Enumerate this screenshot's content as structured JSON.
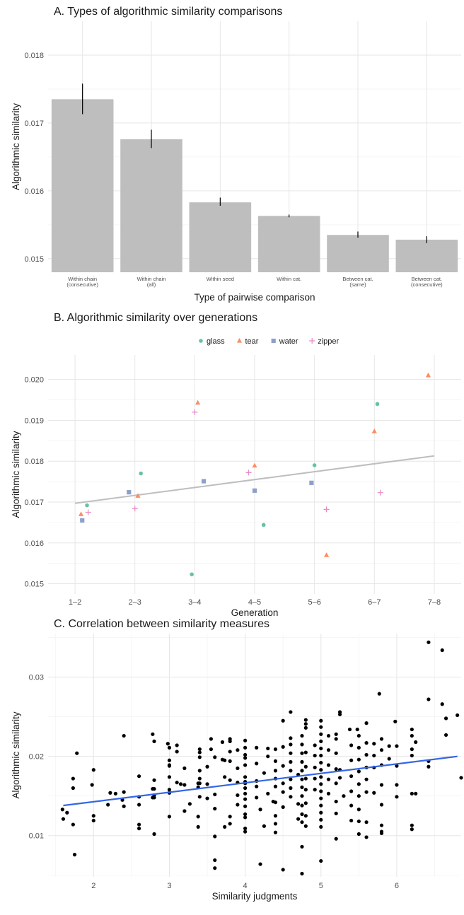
{
  "chart_data": [
    {
      "type": "bar",
      "title": "A. Types of algorithmic similarity comparisons",
      "xlabel": "Type of pairwise comparison",
      "ylabel": "Algorithmic similarity",
      "ylim": [
        0.0148,
        0.0185
      ],
      "yticks": [
        "0.015",
        "0.016",
        "0.017",
        "0.018"
      ],
      "categories": [
        [
          "Within chain",
          "(consecutive)"
        ],
        [
          "Within chain",
          "(all)"
        ],
        [
          "Within seed"
        ],
        [
          "Within cat."
        ],
        [
          "Between cat.",
          "(same)"
        ],
        [
          "Between cat.",
          "(consecutive)"
        ]
      ],
      "values": [
        0.01735,
        0.01676,
        0.01583,
        0.01563,
        0.01535,
        0.01528
      ],
      "error_low": [
        0.01713,
        0.01663,
        0.01578,
        0.01561,
        0.01531,
        0.01523
      ],
      "error_high": [
        0.01758,
        0.0169,
        0.0159,
        0.01565,
        0.0154,
        0.01533
      ],
      "colors": {
        "bar": "#bebebe",
        "error": "#000000"
      }
    },
    {
      "type": "scatter",
      "title": "B. Algorithmic similarity over generations",
      "xlabel": "Generation",
      "ylabel": "Algorithmic similarity",
      "categories": [
        "1–2",
        "2–3",
        "3–4",
        "4–5",
        "5–6",
        "6–7",
        "7–8"
      ],
      "ylim": [
        0.01475,
        0.0206
      ],
      "yticks": [
        "0.015",
        "0.016",
        "0.017",
        "0.018",
        "0.019",
        "0.020"
      ],
      "legend_position": "top",
      "series": [
        {
          "name": "glass",
          "shape": "circle",
          "color": "#66c2a5",
          "points": [
            [
              1.2,
              0.01692
            ],
            [
              2.1,
              0.0177
            ],
            [
              2.95,
              0.01523
            ],
            [
              4.15,
              0.01644
            ],
            [
              5.0,
              0.0179
            ],
            [
              6.05,
              0.0194
            ]
          ]
        },
        {
          "name": "tear",
          "shape": "triangle",
          "color": "#fc8d62",
          "points": [
            [
              1.1,
              0.0167
            ],
            [
              2.05,
              0.01715
            ],
            [
              3.05,
              0.01943
            ],
            [
              4.0,
              0.01789
            ],
            [
              5.2,
              0.0157
            ],
            [
              6.0,
              0.01873
            ],
            [
              6.9,
              0.0201
            ]
          ]
        },
        {
          "name": "water",
          "shape": "square",
          "color": "#8da0cb",
          "points": [
            [
              1.12,
              0.01655
            ],
            [
              1.9,
              0.01724
            ],
            [
              3.15,
              0.01751
            ],
            [
              4.0,
              0.01728
            ],
            [
              4.95,
              0.01747
            ]
          ]
        },
        {
          "name": "zipper",
          "shape": "plus",
          "color": "#e78ac3",
          "points": [
            [
              1.22,
              0.01675
            ],
            [
              2.0,
              0.01684
            ],
            [
              3.0,
              0.0192
            ],
            [
              3.9,
              0.01772
            ],
            [
              5.2,
              0.01682
            ],
            [
              6.1,
              0.01723
            ]
          ]
        }
      ],
      "trend": {
        "x": [
          1,
          7
        ],
        "y": [
          0.01697,
          0.01813
        ],
        "color": "#bebebe"
      }
    },
    {
      "type": "scatter",
      "title": "C. Correlation between similarity measures",
      "xlabel": "Similarity judgments",
      "ylabel": "Algorithmic similarity",
      "xlim": [
        1.4,
        6.85
      ],
      "xticks": [
        2,
        3,
        4,
        5,
        6
      ],
      "ylim": [
        0.0048,
        0.0355
      ],
      "yticks": [
        "0.01",
        "0.02",
        "0.03"
      ],
      "point_color": "#000000",
      "points": [
        [
          1.59,
          0.0133
        ],
        [
          1.6,
          0.0121
        ],
        [
          1.65,
          0.0129
        ],
        [
          1.73,
          0.0114
        ],
        [
          1.73,
          0.016
        ],
        [
          1.73,
          0.0172
        ],
        [
          1.75,
          0.0076
        ],
        [
          1.78,
          0.0204
        ],
        [
          1.98,
          0.0164
        ],
        [
          2,
          0.0125
        ],
        [
          2,
          0.0119
        ],
        [
          2,
          0.0183
        ],
        [
          2.19,
          0.0139
        ],
        [
          2.22,
          0.0154
        ],
        [
          2.29,
          0.0153
        ],
        [
          2.38,
          0.0145
        ],
        [
          2.4,
          0.0137
        ],
        [
          2.4,
          0.0155
        ],
        [
          2.4,
          0.0226
        ],
        [
          2.6,
          0.0175
        ],
        [
          2.6,
          0.0149
        ],
        [
          2.6,
          0.0139
        ],
        [
          2.6,
          0.0114
        ],
        [
          2.6,
          0.0109
        ],
        [
          2.78,
          0.0228
        ],
        [
          2.78,
          0.0159
        ],
        [
          2.78,
          0.0148
        ],
        [
          2.8,
          0.0219
        ],
        [
          2.8,
          0.017
        ],
        [
          2.8,
          0.0159
        ],
        [
          2.8,
          0.0151
        ],
        [
          2.8,
          0.0102
        ],
        [
          2.8,
          0.0148
        ],
        [
          2.98,
          0.0216
        ],
        [
          3,
          0.0195
        ],
        [
          3,
          0.0189
        ],
        [
          3,
          0.0188
        ],
        [
          3,
          0.0174
        ],
        [
          3,
          0.0158
        ],
        [
          3,
          0.0154
        ],
        [
          3,
          0.0124
        ],
        [
          3,
          0.0211
        ],
        [
          3.1,
          0.0214
        ],
        [
          3.1,
          0.0206
        ],
        [
          3.1,
          0.0167
        ],
        [
          3.15,
          0.0165
        ],
        [
          3.2,
          0.0185
        ],
        [
          3.2,
          0.0164
        ],
        [
          3.2,
          0.0131
        ],
        [
          3.27,
          0.014
        ],
        [
          3.38,
          0.0166
        ],
        [
          3.38,
          0.0161
        ],
        [
          3.38,
          0.0124
        ],
        [
          3.38,
          0.0111
        ],
        [
          3.4,
          0.0209
        ],
        [
          3.4,
          0.0199
        ],
        [
          3.4,
          0.0182
        ],
        [
          3.4,
          0.0172
        ],
        [
          3.4,
          0.0166
        ],
        [
          3.4,
          0.0149
        ],
        [
          3.4,
          0.0205
        ],
        [
          3.5,
          0.0187
        ],
        [
          3.5,
          0.0165
        ],
        [
          3.5,
          0.0147
        ],
        [
          3.55,
          0.0222
        ],
        [
          3.55,
          0.0209
        ],
        [
          3.6,
          0.0199
        ],
        [
          3.6,
          0.0152
        ],
        [
          3.6,
          0.0134
        ],
        [
          3.6,
          0.0099
        ],
        [
          3.6,
          0.0069
        ],
        [
          3.6,
          0.0059
        ],
        [
          3.7,
          0.0218
        ],
        [
          3.7,
          0.0196
        ],
        [
          3.73,
          0.0195
        ],
        [
          3.73,
          0.0174
        ],
        [
          3.73,
          0.0111
        ],
        [
          3.8,
          0.0222
        ],
        [
          3.8,
          0.0219
        ],
        [
          3.8,
          0.0206
        ],
        [
          3.8,
          0.0194
        ],
        [
          3.8,
          0.017
        ],
        [
          3.8,
          0.0124
        ],
        [
          3.8,
          0.0115
        ],
        [
          3.9,
          0.0208
        ],
        [
          3.9,
          0.0185
        ],
        [
          3.9,
          0.0167
        ],
        [
          3.9,
          0.0151
        ],
        [
          3.9,
          0.0139
        ],
        [
          4,
          0.022
        ],
        [
          4,
          0.0211
        ],
        [
          4,
          0.0202
        ],
        [
          4,
          0.0198
        ],
        [
          4,
          0.0189
        ],
        [
          4,
          0.0174
        ],
        [
          4,
          0.0168
        ],
        [
          4,
          0.0166
        ],
        [
          4,
          0.016
        ],
        [
          4,
          0.0153
        ],
        [
          4,
          0.0146
        ],
        [
          4,
          0.0137
        ],
        [
          4,
          0.0127
        ],
        [
          4,
          0.0123
        ],
        [
          4,
          0.0109
        ],
        [
          4,
          0.0105
        ],
        [
          4.15,
          0.0211
        ],
        [
          4.15,
          0.0191
        ],
        [
          4.15,
          0.0169
        ],
        [
          4.15,
          0.0162
        ],
        [
          4.15,
          0.0148
        ],
        [
          4.2,
          0.0064
        ],
        [
          4.2,
          0.0133
        ],
        [
          4.25,
          0.0179
        ],
        [
          4.25,
          0.0112
        ],
        [
          4.3,
          0.0153
        ],
        [
          4.3,
          0.021
        ],
        [
          4.3,
          0.02
        ],
        [
          4.37,
          0.0143
        ],
        [
          4.4,
          0.0209
        ],
        [
          4.4,
          0.0194
        ],
        [
          4.4,
          0.0182
        ],
        [
          4.4,
          0.0172
        ],
        [
          4.4,
          0.0162
        ],
        [
          4.4,
          0.0142
        ],
        [
          4.4,
          0.0125
        ],
        [
          4.4,
          0.0115
        ],
        [
          4.4,
          0.0104
        ],
        [
          4.5,
          0.0245
        ],
        [
          4.5,
          0.0212
        ],
        [
          4.5,
          0.0188
        ],
        [
          4.5,
          0.0166
        ],
        [
          4.5,
          0.0155
        ],
        [
          4.5,
          0.0136
        ],
        [
          4.5,
          0.0057
        ],
        [
          4.6,
          0.0256
        ],
        [
          4.6,
          0.0223
        ],
        [
          4.6,
          0.0215
        ],
        [
          4.6,
          0.0204
        ],
        [
          4.6,
          0.0193
        ],
        [
          4.6,
          0.0182
        ],
        [
          4.6,
          0.0171
        ],
        [
          4.6,
          0.016
        ],
        [
          4.6,
          0.0149
        ],
        [
          4.7,
          0.0177
        ],
        [
          4.7,
          0.014
        ],
        [
          4.7,
          0.0121
        ],
        [
          4.75,
          0.0226
        ],
        [
          4.75,
          0.0215
        ],
        [
          4.75,
          0.0204
        ],
        [
          4.75,
          0.0193
        ],
        [
          4.75,
          0.0182
        ],
        [
          4.75,
          0.0171
        ],
        [
          4.75,
          0.0161
        ],
        [
          4.75,
          0.015
        ],
        [
          4.75,
          0.0138
        ],
        [
          4.75,
          0.0127
        ],
        [
          4.75,
          0.0117
        ],
        [
          4.75,
          0.0086
        ],
        [
          4.75,
          0.0052
        ],
        [
          4.8,
          0.0246
        ],
        [
          4.8,
          0.0241
        ],
        [
          4.8,
          0.0236
        ],
        [
          4.8,
          0.0205
        ],
        [
          4.8,
          0.0187
        ],
        [
          4.8,
          0.0172
        ],
        [
          4.8,
          0.0158
        ],
        [
          4.8,
          0.0141
        ],
        [
          4.8,
          0.0125
        ],
        [
          4.8,
          0.0112
        ],
        [
          4.92,
          0.0214
        ],
        [
          4.92,
          0.0201
        ],
        [
          4.92,
          0.0186
        ],
        [
          4.92,
          0.0172
        ],
        [
          4.92,
          0.0158
        ],
        [
          5,
          0.0245
        ],
        [
          5,
          0.0237
        ],
        [
          5,
          0.0228
        ],
        [
          5,
          0.0219
        ],
        [
          5,
          0.021
        ],
        [
          5,
          0.0201
        ],
        [
          5,
          0.0192
        ],
        [
          5,
          0.0183
        ],
        [
          5,
          0.0174
        ],
        [
          5,
          0.0165
        ],
        [
          5,
          0.0156
        ],
        [
          5,
          0.0147
        ],
        [
          5,
          0.0138
        ],
        [
          5,
          0.0129
        ],
        [
          5,
          0.012
        ],
        [
          5,
          0.0111
        ],
        [
          5,
          0.0068
        ],
        [
          5.1,
          0.0226
        ],
        [
          5.1,
          0.0208
        ],
        [
          5.1,
          0.0189
        ],
        [
          5.1,
          0.0171
        ],
        [
          5.1,
          0.0153
        ],
        [
          5.2,
          0.0228
        ],
        [
          5.2,
          0.0222
        ],
        [
          5.2,
          0.0204
        ],
        [
          5.2,
          0.0184
        ],
        [
          5.2,
          0.0166
        ],
        [
          5.2,
          0.0143
        ],
        [
          5.2,
          0.0128
        ],
        [
          5.2,
          0.0096
        ],
        [
          5.25,
          0.0256
        ],
        [
          5.25,
          0.0253
        ],
        [
          5.25,
          0.0183
        ],
        [
          5.25,
          0.0173
        ],
        [
          5.3,
          0.015
        ],
        [
          5.38,
          0.0234
        ],
        [
          5.4,
          0.0214
        ],
        [
          5.4,
          0.0195
        ],
        [
          5.4,
          0.0175
        ],
        [
          5.4,
          0.0156
        ],
        [
          5.4,
          0.0138
        ],
        [
          5.4,
          0.0119
        ],
        [
          5.48,
          0.0234
        ],
        [
          5.5,
          0.0226
        ],
        [
          5.5,
          0.0211
        ],
        [
          5.5,
          0.0196
        ],
        [
          5.5,
          0.0181
        ],
        [
          5.5,
          0.0165
        ],
        [
          5.5,
          0.015
        ],
        [
          5.5,
          0.0133
        ],
        [
          5.5,
          0.0118
        ],
        [
          5.5,
          0.0102
        ],
        [
          5.6,
          0.0242
        ],
        [
          5.6,
          0.0217
        ],
        [
          5.6,
          0.0202
        ],
        [
          5.6,
          0.0186
        ],
        [
          5.6,
          0.0171
        ],
        [
          5.6,
          0.0155
        ],
        [
          5.6,
          0.0117
        ],
        [
          5.6,
          0.0098
        ],
        [
          5.7,
          0.0216
        ],
        [
          5.7,
          0.0201
        ],
        [
          5.7,
          0.0186
        ],
        [
          5.7,
          0.0154
        ],
        [
          5.77,
          0.0279
        ],
        [
          5.8,
          0.0222
        ],
        [
          5.8,
          0.0208
        ],
        [
          5.8,
          0.0189
        ],
        [
          5.8,
          0.0164
        ],
        [
          5.8,
          0.0139
        ],
        [
          5.8,
          0.0113
        ],
        [
          5.8,
          0.0103
        ],
        [
          5.8,
          0.0105
        ],
        [
          5.9,
          0.0213
        ],
        [
          5.9,
          0.0197
        ],
        [
          5.98,
          0.0244
        ],
        [
          6,
          0.0188
        ],
        [
          6,
          0.0164
        ],
        [
          6,
          0.0149
        ],
        [
          6,
          0.0213
        ],
        [
          6.2,
          0.0234
        ],
        [
          6.2,
          0.0226
        ],
        [
          6.2,
          0.0209
        ],
        [
          6.2,
          0.0201
        ],
        [
          6.2,
          0.0153
        ],
        [
          6.2,
          0.0113
        ],
        [
          6.2,
          0.0108
        ],
        [
          6.25,
          0.0218
        ],
        [
          6.25,
          0.0153
        ],
        [
          6.42,
          0.0344
        ],
        [
          6.42,
          0.0272
        ],
        [
          6.42,
          0.0194
        ],
        [
          6.42,
          0.0187
        ],
        [
          6.6,
          0.0334
        ],
        [
          6.6,
          0.0266
        ],
        [
          6.65,
          0.0248
        ],
        [
          6.65,
          0.0227
        ],
        [
          6.8,
          0.0252
        ],
        [
          6.85,
          0.0173
        ]
      ],
      "trend": {
        "x": [
          1.6,
          6.8
        ],
        "y": [
          0.0138,
          0.02
        ],
        "color": "#3366e6"
      }
    }
  ]
}
